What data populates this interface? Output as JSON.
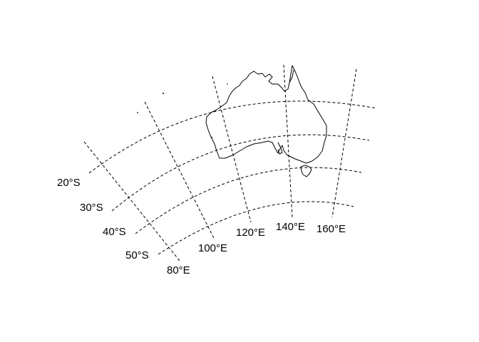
{
  "map": {
    "region": "Australia",
    "graticule_style": "dashed",
    "line_color": "#000000",
    "background_color": "#ffffff",
    "latitude_labels": [
      "20°S",
      "30°S",
      "40°S",
      "50°S"
    ],
    "longitude_labels": [
      "80°E",
      "100°E",
      "120°E",
      "140°E",
      "160°E"
    ]
  }
}
